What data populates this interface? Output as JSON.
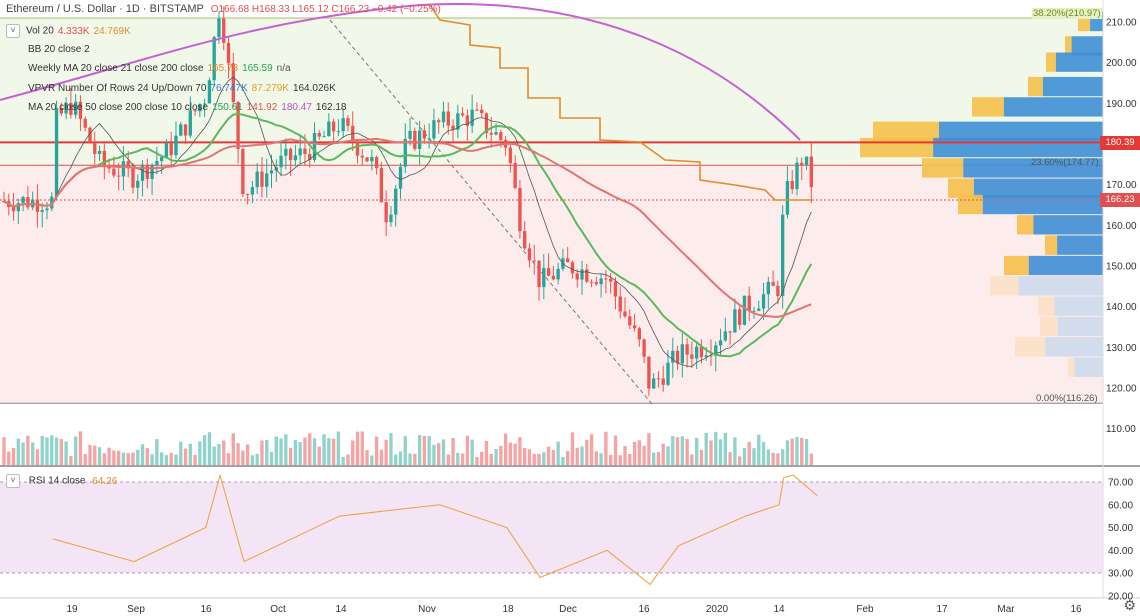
{
  "header": {
    "symbol_title": "Ethereum / U.S. Dollar · 1D · BITSTAMP",
    "ohlc": "O166.68  H168.33  L165.12  C166.23  −0.42 (−0.25%)"
  },
  "indicators": [
    {
      "name": "Vol 20",
      "values": [
        "4.333K",
        "24.769K"
      ],
      "colors": [
        "#e05050",
        "#e58a2d"
      ]
    },
    {
      "name": "BB 20 close 2",
      "values": [],
      "colors": []
    },
    {
      "name": "Weekly MA 20 close 21 close 200 close",
      "values": [
        "165.78",
        "165.59",
        "n/a"
      ],
      "colors": [
        "#e58a2d",
        "#22a650",
        "#555"
      ]
    },
    {
      "name": "VPVR Number Of Rows 24 Up/Down 70",
      "values": [
        "76.747K",
        "87.279K",
        "164.026K"
      ],
      "colors": [
        "#2f7fd0",
        "#e0a020",
        "#333"
      ]
    },
    {
      "name": "MA 20 close 50 close 200 close 10 close",
      "values": [
        "150.61",
        "141.92",
        "180.47",
        "162.18"
      ],
      "colors": [
        "#22a650",
        "#e05050",
        "#c050d0",
        "#333"
      ]
    }
  ],
  "rsi": {
    "label": "RSI 14 close",
    "value": "64.26",
    "value_color": "#e58a2d"
  },
  "price_axis": [
    "210.00",
    "200.00",
    "190.00",
    "180.00",
    "170.00",
    "160.00",
    "150.00",
    "140.00",
    "130.00",
    "120.00",
    "110.00"
  ],
  "rsi_axis": [
    "70.00",
    "60.00",
    "50.00",
    "40.00",
    "30.00",
    "20.00"
  ],
  "time_axis": [
    "19",
    "Sep",
    "16",
    "Oct",
    "14",
    "Nov",
    "18",
    "Dec",
    "16",
    "2020",
    "14",
    "Feb",
    "17",
    "Mar",
    "16"
  ],
  "price_tags": {
    "red_line": "180.39",
    "last": "166.23"
  },
  "fib_labels": {
    "top": "38.20%(210.97)",
    "mid": "23.60%(174.77)",
    "bottom": "0.00%(116.26)"
  },
  "colors": {
    "up": "#26a69a",
    "down": "#ef5350",
    "upzone": "#f1f8e9",
    "downzone": "#fdecec",
    "rsi_bg": "#f3e5f5"
  },
  "chart_data": {
    "type": "candlestick",
    "symbol": "ETHUSD",
    "interval": "1D",
    "exchange": "BITSTAMP",
    "last_ohlc": {
      "open": 166.68,
      "high": 168.33,
      "low": 165.12,
      "close": 166.23
    },
    "price_range": [
      100,
      215
    ],
    "key_levels": {
      "horizontal_red": 180.39,
      "fib_38_2": 210.97,
      "fib_23_6": 174.77,
      "fib_0": 116.26
    },
    "close_path": [
      {
        "x": "Aug 15",
        "y": 185
      },
      {
        "x": "Aug 19",
        "y": 190
      },
      {
        "x": "Aug 25",
        "y": 175
      },
      {
        "x": "Sep 1",
        "y": 172
      },
      {
        "x": "Sep 8",
        "y": 178
      },
      {
        "x": "Sep 16",
        "y": 192
      },
      {
        "x": "Sep 19",
        "y": 215
      },
      {
        "x": "Sep 24",
        "y": 168
      },
      {
        "x": "Oct 1",
        "y": 175
      },
      {
        "x": "Oct 7",
        "y": 178
      },
      {
        "x": "Oct 14",
        "y": 185
      },
      {
        "x": "Oct 21",
        "y": 175
      },
      {
        "x": "Oct 24",
        "y": 162
      },
      {
        "x": "Oct 28",
        "y": 180
      },
      {
        "x": "Nov 4",
        "y": 185
      },
      {
        "x": "Nov 11",
        "y": 187
      },
      {
        "x": "Nov 18",
        "y": 180
      },
      {
        "x": "Nov 21",
        "y": 160
      },
      {
        "x": "Nov 25",
        "y": 146
      },
      {
        "x": "Dec 1",
        "y": 150
      },
      {
        "x": "Dec 9",
        "y": 147
      },
      {
        "x": "Dec 16",
        "y": 130
      },
      {
        "x": "Dec 18",
        "y": 120
      },
      {
        "x": "Dec 24",
        "y": 128
      },
      {
        "x": "Dec 31",
        "y": 131
      },
      {
        "x": "Jan 7",
        "y": 140
      },
      {
        "x": "Jan 14",
        "y": 145
      },
      {
        "x": "Jan 15",
        "y": 166
      },
      {
        "x": "Jan 19",
        "y": 177
      },
      {
        "x": "Jan 22",
        "y": 166
      }
    ],
    "rsi_range": [
      20,
      75
    ],
    "rsi_path": [
      {
        "x": "Aug 15",
        "y": 45
      },
      {
        "x": "Sep 1",
        "y": 35
      },
      {
        "x": "Sep 16",
        "y": 50
      },
      {
        "x": "Sep 19",
        "y": 73
      },
      {
        "x": "Sep 24",
        "y": 35
      },
      {
        "x": "Oct 14",
        "y": 55
      },
      {
        "x": "Nov 4",
        "y": 60
      },
      {
        "x": "Nov 18",
        "y": 50
      },
      {
        "x": "Nov 25",
        "y": 28
      },
      {
        "x": "Dec 9",
        "y": 40
      },
      {
        "x": "Dec 18",
        "y": 25
      },
      {
        "x": "Dec 24",
        "y": 42
      },
      {
        "x": "Jan 7",
        "y": 55
      },
      {
        "x": "Jan 14",
        "y": 60
      },
      {
        "x": "Jan 15",
        "y": 72
      },
      {
        "x": "Jan 17",
        "y": 73
      },
      {
        "x": "Jan 22",
        "y": 64
      }
    ]
  }
}
